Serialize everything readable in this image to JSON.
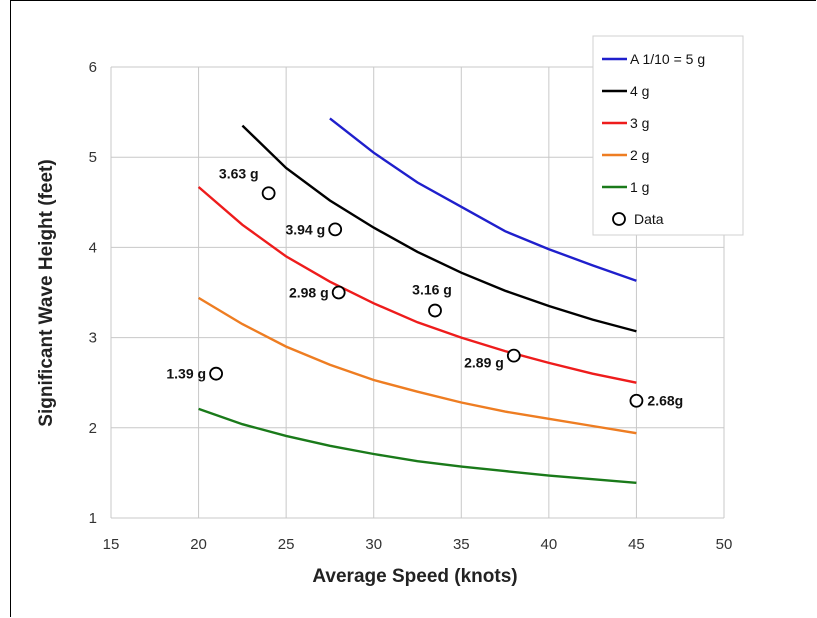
{
  "chart_data": {
    "type": "line",
    "xlabel": "Average Speed (knots)",
    "ylabel": "Significant Wave Height (feet)",
    "xlim": [
      15,
      50
    ],
    "ylim": [
      1,
      6
    ],
    "xticks": [
      15,
      20,
      25,
      30,
      35,
      40,
      45,
      50
    ],
    "yticks": [
      1,
      2,
      3,
      4,
      5,
      6
    ],
    "grid": true,
    "legend_position": "top-right",
    "series": [
      {
        "name": "A 1/10 = 5 g",
        "color": "#1f1fcc",
        "x": [
          27.5,
          30,
          32.5,
          35,
          37.5,
          40,
          42.5,
          45
        ],
        "y": [
          5.43,
          5.05,
          4.72,
          4.45,
          4.18,
          3.98,
          3.8,
          3.63
        ]
      },
      {
        "name": "4 g",
        "color": "#000000",
        "x": [
          22.5,
          25,
          27.5,
          30,
          32.5,
          35,
          37.5,
          40,
          42.5,
          45
        ],
        "y": [
          5.35,
          4.88,
          4.52,
          4.22,
          3.95,
          3.72,
          3.52,
          3.35,
          3.2,
          3.07
        ]
      },
      {
        "name": "3 g",
        "color": "#ee1c1c",
        "x": [
          20,
          22.5,
          25,
          27.5,
          30,
          32.5,
          35,
          37.5,
          40,
          42.5,
          45
        ],
        "y": [
          4.67,
          4.25,
          3.9,
          3.62,
          3.38,
          3.17,
          3.0,
          2.85,
          2.72,
          2.6,
          2.5
        ]
      },
      {
        "name": "2 g",
        "color": "#ee7d22",
        "x": [
          20,
          22.5,
          25,
          27.5,
          30,
          32.5,
          35,
          37.5,
          40,
          42.5,
          45
        ],
        "y": [
          3.44,
          3.15,
          2.9,
          2.7,
          2.53,
          2.4,
          2.28,
          2.18,
          2.1,
          2.02,
          1.94
        ]
      },
      {
        "name": "1 g",
        "color": "#1a7a1a",
        "x": [
          20,
          22.5,
          25,
          27.5,
          30,
          32.5,
          35,
          37.5,
          40,
          42.5,
          45
        ],
        "y": [
          2.21,
          2.04,
          1.91,
          1.8,
          1.71,
          1.63,
          1.57,
          1.52,
          1.47,
          1.43,
          1.39
        ]
      }
    ],
    "data_series": {
      "name": "Data",
      "points": [
        {
          "x": 21,
          "y": 2.6,
          "label": "1.39 g"
        },
        {
          "x": 24,
          "y": 4.6,
          "label": "3.63 g"
        },
        {
          "x": 27.8,
          "y": 4.2,
          "label": "3.94 g"
        },
        {
          "x": 28,
          "y": 3.5,
          "label": "2.98 g"
        },
        {
          "x": 33.5,
          "y": 3.3,
          "label": "3.16 g"
        },
        {
          "x": 38,
          "y": 2.8,
          "label": "2.89 g"
        },
        {
          "x": 45,
          "y": 2.3,
          "label": "2.68g"
        }
      ]
    }
  }
}
